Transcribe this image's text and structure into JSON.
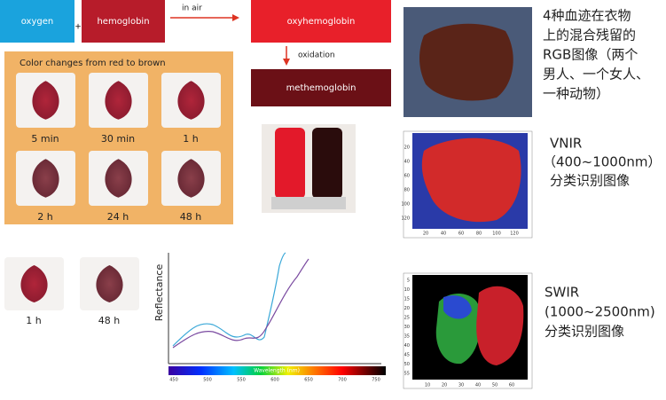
{
  "reaction": {
    "oxygen": "oxygen",
    "plus": "+",
    "hemoglobin": "hemoglobin",
    "in_air": "in air",
    "oxyhemoglobin": "oxyhemoglobin",
    "oxidation": "oxidation",
    "methemoglobin": "methemoglobin"
  },
  "panel": {
    "title": "Color changes from red to brown",
    "samples": [
      "5 min",
      "30 min",
      "1 h",
      "2 h",
      "24 h",
      "48 h"
    ]
  },
  "comparison": {
    "samples": [
      "1 h",
      "48 h"
    ]
  },
  "spectrum": {
    "y_label": "Reflectance",
    "x_label": "Wavelength (nm)",
    "ticks": [
      "450",
      "500",
      "550",
      "600",
      "650",
      "700",
      "750"
    ]
  },
  "rgb": {
    "caption": [
      "4种血迹在衣物",
      "上的混合残留的",
      "RGB图像（两个",
      "男人、一个女人、",
      "一种动物）"
    ]
  },
  "vnir": {
    "caption": [
      "VNIR",
      "（400~1000nm）",
      "分类识别图像"
    ],
    "yticks": [
      "20",
      "40",
      "60",
      "80",
      "100",
      "120"
    ],
    "xticks": [
      "20",
      "40",
      "60",
      "80",
      "100",
      "120"
    ]
  },
  "swir": {
    "caption": [
      "SWIR",
      "(1000~2500nm)",
      "分类识别图像"
    ],
    "yticks": [
      "5",
      "10",
      "15",
      "20",
      "25",
      "30",
      "35",
      "40",
      "45",
      "50",
      "55"
    ],
    "xticks": [
      "10",
      "20",
      "30",
      "40",
      "50",
      "60"
    ]
  }
}
